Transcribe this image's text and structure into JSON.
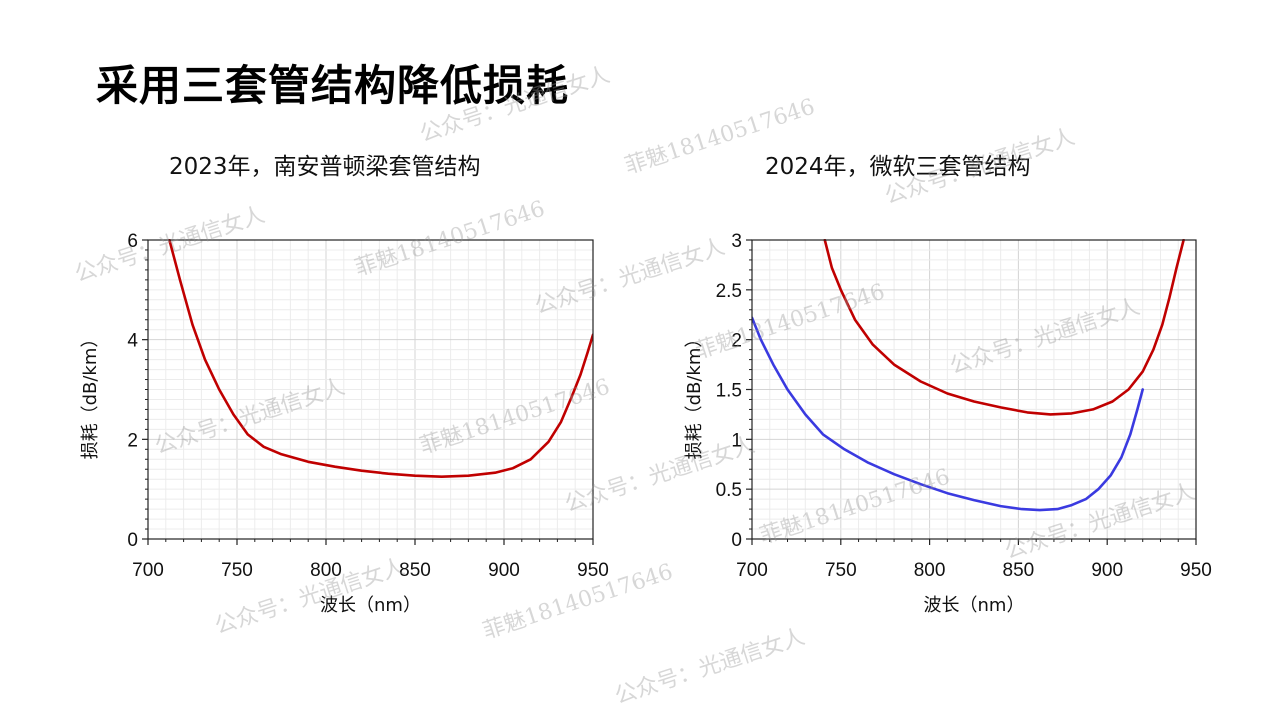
{
  "page": {
    "title": "采用三套管结构降低损耗"
  },
  "watermarks": {
    "account": "公众号：光通信女人",
    "contact": "菲魅18140517646"
  },
  "chart_data": [
    {
      "type": "line",
      "title": "2023年，南安普顿梁套管结构",
      "xlabel": "波长（nm）",
      "ylabel": "损耗（dB/km）",
      "xlim": [
        700,
        950
      ],
      "ylim": [
        0,
        6
      ],
      "x_ticks": [
        700,
        750,
        800,
        850,
        900,
        950
      ],
      "x_tick_labels": [
        "700",
        "750",
        "800",
        "850",
        "900",
        "950"
      ],
      "y_ticks": [
        0,
        2,
        4,
        6
      ],
      "y_tick_labels": [
        "0",
        "2",
        "4",
        "6"
      ],
      "grid": true,
      "legend": "none",
      "series": [
        {
          "color": "#c00000",
          "x": [
            712,
            718,
            725,
            732,
            740,
            748,
            756,
            765,
            775,
            790,
            805,
            820,
            835,
            850,
            865,
            880,
            895,
            905,
            915,
            925,
            932,
            938,
            943,
            947,
            950
          ],
          "y": [
            6.0,
            5.2,
            4.3,
            3.6,
            3.0,
            2.5,
            2.1,
            1.85,
            1.7,
            1.55,
            1.45,
            1.37,
            1.31,
            1.27,
            1.25,
            1.27,
            1.33,
            1.42,
            1.6,
            1.95,
            2.35,
            2.85,
            3.3,
            3.75,
            4.1
          ]
        }
      ]
    },
    {
      "type": "line",
      "title": "2024年，微软三套管结构",
      "xlabel": "波长（nm）",
      "ylabel": "损耗（dB/km）",
      "xlim": [
        700,
        950
      ],
      "ylim": [
        0,
        3
      ],
      "x_ticks": [
        700,
        750,
        800,
        850,
        900,
        950
      ],
      "x_tick_labels": [
        "700",
        "750",
        "800",
        "850",
        "900",
        "950"
      ],
      "y_ticks": [
        0,
        0.5,
        1,
        1.5,
        2,
        2.5,
        3
      ],
      "y_tick_labels": [
        "0",
        "0.5",
        "1",
        "1.5",
        "2",
        "2.5",
        "3"
      ],
      "grid": true,
      "legend": "none",
      "series": [
        {
          "color": "#c00000",
          "x": [
            741,
            745,
            750,
            758,
            768,
            780,
            795,
            810,
            825,
            840,
            855,
            868,
            880,
            892,
            903,
            912,
            920,
            926,
            931,
            935,
            939,
            943
          ],
          "y": [
            3.0,
            2.72,
            2.5,
            2.2,
            1.95,
            1.75,
            1.58,
            1.46,
            1.38,
            1.32,
            1.27,
            1.25,
            1.26,
            1.3,
            1.38,
            1.5,
            1.68,
            1.9,
            2.15,
            2.42,
            2.72,
            3.0
          ]
        },
        {
          "color": "#3a3ae0",
          "x": [
            700,
            705,
            712,
            720,
            730,
            740,
            752,
            765,
            780,
            795,
            810,
            825,
            840,
            852,
            862,
            872,
            880,
            888,
            895,
            902,
            908,
            913,
            917,
            920
          ],
          "y": [
            2.22,
            2.0,
            1.75,
            1.5,
            1.25,
            1.05,
            0.9,
            0.77,
            0.65,
            0.55,
            0.46,
            0.39,
            0.33,
            0.3,
            0.29,
            0.3,
            0.34,
            0.4,
            0.5,
            0.64,
            0.82,
            1.05,
            1.3,
            1.5
          ]
        }
      ]
    }
  ]
}
